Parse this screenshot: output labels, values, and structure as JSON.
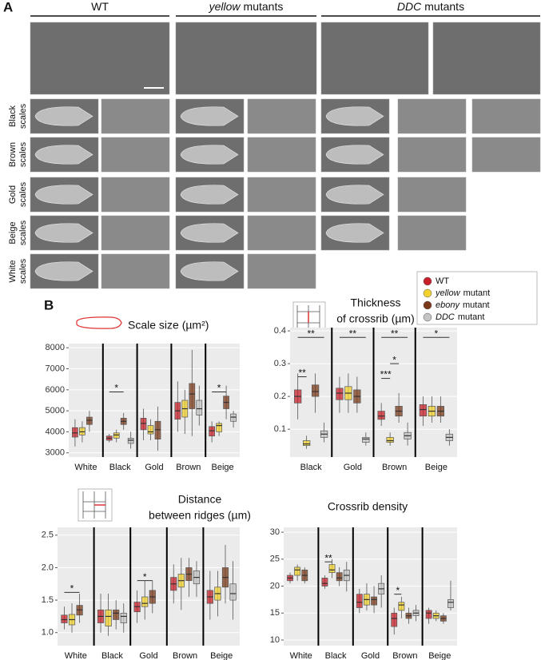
{
  "panel_a": {
    "label": "A",
    "columns": [
      {
        "text": "WT"
      },
      {
        "italic": "yellow",
        "text": "mutants"
      },
      {
        "italic": "DDC",
        "text": "mutants"
      }
    ],
    "rows": [
      [
        "Black",
        "scales"
      ],
      [
        "Brown",
        "scales"
      ],
      [
        "Gold",
        "scales"
      ],
      [
        "Beige",
        "scales"
      ],
      [
        "White",
        "scales"
      ]
    ]
  },
  "panel_b": {
    "label": "B"
  },
  "legend": {
    "entries": [
      {
        "text": "WT",
        "color": "#c8202a"
      },
      {
        "italic": "yellow",
        "text": "mutant",
        "color": "#f2d22c"
      },
      {
        "italic": "ebony",
        "text": "mutant",
        "color": "#7a3a1a"
      },
      {
        "italic": "DDC",
        "text": "mutant",
        "color": "#c4c4c4"
      }
    ]
  },
  "chart_data": [
    {
      "type": "box",
      "title": [
        "Scale size (µm²)"
      ],
      "categories": [
        "White",
        "Black",
        "Gold",
        "Brown",
        "Beige"
      ],
      "ylim": [
        2800,
        8200
      ],
      "yticks": [
        3000,
        4000,
        5000,
        6000,
        7000,
        8000
      ],
      "grid": true,
      "series": [
        {
          "color": "#c8202a",
          "values": [
            3950,
            3700,
            4400,
            5000,
            4050
          ],
          "q1": [
            3750,
            3600,
            4100,
            4600,
            3800
          ],
          "q3": [
            4200,
            3800,
            4650,
            5400,
            4250
          ],
          "min": [
            3300,
            3500,
            3600,
            4000,
            3500
          ],
          "max": [
            4600,
            3900,
            5100,
            6400,
            4500
          ]
        },
        {
          "color": "#f2d22c",
          "values": [
            4000,
            3850,
            4000,
            5100,
            4300
          ],
          "q1": [
            3850,
            3700,
            3900,
            4700,
            4000
          ],
          "q3": [
            4200,
            3950,
            4300,
            5500,
            4400
          ],
          "min": [
            3500,
            3500,
            3600,
            3900,
            3800
          ],
          "max": [
            4500,
            4100,
            4600,
            6000,
            4500
          ]
        },
        {
          "color": "#7a3a1a",
          "values": [
            4550,
            4500,
            4100,
            5800,
            5400
          ],
          "q1": [
            4350,
            4350,
            3650,
            5100,
            5100
          ],
          "q3": [
            4700,
            4650,
            4500,
            6300,
            5700
          ],
          "min": [
            4000,
            4100,
            3100,
            3800,
            4600
          ],
          "max": [
            5000,
            4900,
            5200,
            7900,
            6200
          ]
        },
        {
          "color": "#c4c4c4",
          "values": [
            null,
            3600,
            null,
            5100,
            4700
          ],
          "q1": [
            null,
            3450,
            null,
            4800,
            4500
          ],
          "q3": [
            null,
            3700,
            null,
            5500,
            4850
          ],
          "min": [
            null,
            3200,
            null,
            4300,
            4200
          ],
          "max": [
            null,
            4000,
            null,
            6200,
            5000
          ]
        }
      ],
      "annotations": [
        {
          "text": "*",
          "category": 1,
          "from": 0,
          "to": 2,
          "y": 5900
        },
        {
          "text": "*",
          "category": 4,
          "from": 0,
          "to": 2,
          "y": 5900
        }
      ]
    },
    {
      "type": "box",
      "title": [
        "Thickness",
        "of crossrib (µm)"
      ],
      "categories": [
        "Black",
        "Gold",
        "Brown",
        "Beige"
      ],
      "ylim": [
        0.015,
        0.41
      ],
      "yticks": [
        0.1,
        0.2,
        0.3,
        0.4
      ],
      "grid": true,
      "series": [
        {
          "color": "#c8202a",
          "values": [
            0.2,
            0.21,
            0.14,
            0.16
          ],
          "q1": [
            0.18,
            0.19,
            0.13,
            0.14
          ],
          "q3": [
            0.22,
            0.225,
            0.155,
            0.175
          ],
          "min": [
            0.13,
            0.15,
            0.11,
            0.11
          ],
          "max": [
            0.27,
            0.26,
            0.18,
            0.2
          ]
        },
        {
          "color": "#f2d22c",
          "values": [
            0.055,
            0.21,
            0.065,
            0.155
          ],
          "q1": [
            0.05,
            0.19,
            0.06,
            0.14
          ],
          "q3": [
            0.065,
            0.23,
            0.075,
            0.17
          ],
          "min": [
            0.04,
            0.15,
            0.05,
            0.12
          ],
          "max": [
            0.08,
            0.27,
            0.09,
            0.2
          ]
        },
        {
          "color": "#7a3a1a",
          "values": [
            0.215,
            0.2,
            0.155,
            0.155
          ],
          "q1": [
            0.2,
            0.18,
            0.14,
            0.14
          ],
          "q3": [
            0.235,
            0.22,
            0.17,
            0.17
          ],
          "min": [
            0.15,
            0.15,
            0.12,
            0.12
          ],
          "max": [
            0.27,
            0.26,
            0.21,
            0.2
          ]
        },
        {
          "color": "#c4c4c4",
          "values": [
            0.085,
            0.07,
            0.08,
            0.075
          ],
          "q1": [
            0.075,
            0.06,
            0.07,
            0.065
          ],
          "q3": [
            0.095,
            0.075,
            0.09,
            0.085
          ],
          "min": [
            0.06,
            0.05,
            0.05,
            0.05
          ],
          "max": [
            0.12,
            0.09,
            0.12,
            0.1
          ]
        }
      ],
      "annotations": [
        {
          "text": "**",
          "category": 0,
          "from": 0,
          "to": 1,
          "y": 0.26
        },
        {
          "text": "**",
          "category": 0,
          "from": 0,
          "to": 3,
          "y": 0.38
        },
        {
          "text": "**",
          "category": 1,
          "from": 0,
          "to": 3,
          "y": 0.38
        },
        {
          "text": "***",
          "category": 2,
          "from": 0,
          "to": 1,
          "y": 0.255
        },
        {
          "text": "*",
          "category": 2,
          "from": 1,
          "to": 2,
          "y": 0.3
        },
        {
          "text": "**",
          "category": 2,
          "from": 0,
          "to": 3,
          "y": 0.38
        },
        {
          "text": "*",
          "category": 3,
          "from": 0,
          "to": 3,
          "y": 0.38
        }
      ]
    },
    {
      "type": "box",
      "title": [
        "Distance",
        "between ridges (µm)"
      ],
      "categories": [
        "White",
        "Black",
        "Gold",
        "Brown",
        "Beige"
      ],
      "ylim": [
        0.8,
        2.62
      ],
      "yticks": [
        {
          "value": 1,
          "label": "1.0"
        },
        1.5,
        {
          "value": 2,
          "label": "2.0"
        },
        2.5
      ],
      "grid": true,
      "series": [
        {
          "color": "#c8202a",
          "values": [
            1.2,
            1.25,
            1.4,
            1.75,
            1.55
          ],
          "q1": [
            1.15,
            1.15,
            1.32,
            1.65,
            1.45
          ],
          "q3": [
            1.27,
            1.35,
            1.47,
            1.85,
            1.65
          ],
          "min": [
            1.05,
            1.0,
            1.15,
            1.45,
            1.2
          ],
          "max": [
            1.4,
            1.6,
            1.65,
            2.05,
            1.95
          ]
        },
        {
          "color": "#f2d22c",
          "values": [
            1.2,
            1.25,
            1.45,
            1.8,
            1.6
          ],
          "q1": [
            1.12,
            1.1,
            1.4,
            1.7,
            1.5
          ],
          "q3": [
            1.28,
            1.35,
            1.55,
            1.9,
            1.7
          ],
          "min": [
            1.0,
            0.95,
            1.2,
            1.35,
            1.25
          ],
          "max": [
            1.45,
            1.6,
            1.8,
            2.15,
            1.95
          ]
        },
        {
          "color": "#7a3a1a",
          "values": [
            1.35,
            1.3,
            1.55,
            1.9,
            1.85
          ],
          "q1": [
            1.27,
            1.2,
            1.45,
            1.8,
            1.7
          ],
          "q3": [
            1.42,
            1.35,
            1.65,
            2.0,
            2.0
          ],
          "min": [
            1.15,
            1.05,
            1.3,
            1.55,
            1.45
          ],
          "max": [
            1.6,
            1.5,
            1.8,
            2.15,
            2.35
          ]
        },
        {
          "color": "#c4c4c4",
          "values": [
            null,
            1.25,
            null,
            1.85,
            1.6
          ],
          "q1": [
            null,
            1.15,
            null,
            1.75,
            1.5
          ],
          "q3": [
            null,
            1.3,
            null,
            1.95,
            1.75
          ],
          "min": [
            null,
            1.0,
            null,
            1.55,
            1.2
          ],
          "max": [
            null,
            1.45,
            null,
            2.1,
            2.1
          ]
        }
      ],
      "annotations": [
        {
          "text": "*",
          "category": 0,
          "from": 0,
          "to": 2,
          "y": 1.62
        },
        {
          "text": "*",
          "category": 2,
          "from": 0,
          "to": 2,
          "y": 1.8
        }
      ]
    },
    {
      "type": "box",
      "title": [
        "Crossrib density"
      ],
      "categories": [
        "White",
        "Black",
        "Gold",
        "Brown",
        "Beige"
      ],
      "ylim": [
        8.96,
        30.9
      ],
      "yticks": [
        10,
        15,
        20,
        25,
        30
      ],
      "grid": true,
      "series": [
        {
          "color": "#c8202a",
          "values": [
            21.5,
            20.5,
            17,
            14,
            15
          ],
          "q1": [
            21,
            20,
            16,
            12.5,
            14
          ],
          "q3": [
            22,
            21.5,
            18.5,
            15,
            15.5
          ],
          "min": [
            20.5,
            19.5,
            15,
            11,
            13
          ],
          "max": [
            22.5,
            22,
            19.5,
            16,
            16
          ]
        },
        {
          "color": "#f2d22c",
          "values": [
            23,
            23,
            17.5,
            16.5,
            14.5
          ],
          "q1": [
            22,
            22.5,
            16.5,
            15.5,
            14
          ],
          "q3": [
            23.5,
            24,
            18.5,
            17,
            15
          ],
          "min": [
            21,
            21.5,
            15.5,
            14,
            13.5
          ],
          "max": [
            24,
            25,
            20.5,
            18,
            15.5
          ]
        },
        {
          "color": "#7a3a1a",
          "values": [
            22,
            21.5,
            17.5,
            14.5,
            14
          ],
          "q1": [
            21,
            21,
            16.5,
            14,
            13.5
          ],
          "q3": [
            23,
            22.5,
            18,
            15,
            14.5
          ],
          "min": [
            20.5,
            20,
            15,
            13,
            13
          ],
          "max": [
            23.5,
            23.5,
            20,
            16,
            15
          ]
        },
        {
          "color": "#c4c4c4",
          "values": [
            null,
            22,
            19.5,
            15,
            17
          ],
          "q1": [
            null,
            21,
            18.5,
            14.5,
            16
          ],
          "q3": [
            null,
            23,
            20.5,
            15.5,
            17.5
          ],
          "min": [
            null,
            19,
            16,
            13.5,
            15.5
          ],
          "max": [
            null,
            24.5,
            22,
            16.5,
            21
          ]
        }
      ],
      "annotations": [
        {
          "text": "**",
          "category": 1,
          "from": 0,
          "to": 1,
          "y": 24.5
        },
        {
          "text": "*",
          "category": 3,
          "from": 0,
          "to": 1,
          "y": 18.5
        }
      ]
    }
  ]
}
